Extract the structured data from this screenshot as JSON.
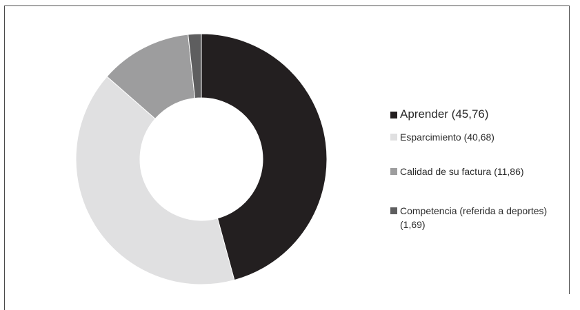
{
  "chart_data": {
    "type": "pie",
    "variant": "donut",
    "title": "",
    "legend_position": "right",
    "slices": [
      {
        "label": "Aprender (45,76)",
        "value": 45.76,
        "color": "#231f20"
      },
      {
        "label": "Esparcimiento (40,68)",
        "value": 40.68,
        "color": "#e0e0e1"
      },
      {
        "label": "Calidad de su factura (11,86)",
        "value": 11.86,
        "color": "#9d9d9e"
      },
      {
        "label": "Competencia (referida a deportes) (1,69)",
        "value": 1.69,
        "color": "#5e5e5f"
      }
    ]
  }
}
